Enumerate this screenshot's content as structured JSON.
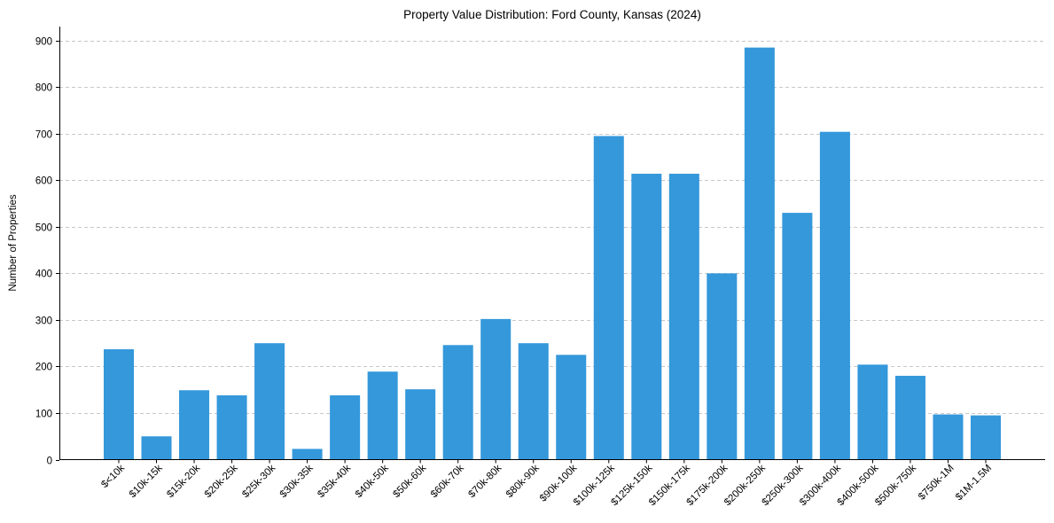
{
  "chart_data": {
    "type": "bar",
    "title": "Property Value Distribution: Ford County, Kansas (2024)",
    "xlabel": "",
    "ylabel": "Number of Properties",
    "ylim": [
      0,
      930
    ],
    "yticks": [
      0,
      100,
      200,
      300,
      400,
      500,
      600,
      700,
      800,
      900
    ],
    "grid": "y-dashed",
    "bar_color": "#3498db",
    "categories": [
      "$<10k",
      "$10k-15k",
      "$15k-20k",
      "$20k-25k",
      "$25k-30k",
      "$30k-35k",
      "$35k-40k",
      "$40k-50k",
      "$50k-60k",
      "$60k-70k",
      "$70k-80k",
      "$80k-90k",
      "$90k-100k",
      "$100k-125k",
      "$125k-150k",
      "$150k-175k",
      "$175k-200k",
      "$200k-250k",
      "$250k-300k",
      "$300k-400k",
      "$400k-500k",
      "$500k-750k",
      "$750k-1M",
      "$1M-1.5M"
    ],
    "values": [
      237,
      50,
      149,
      138,
      250,
      23,
      138,
      189,
      151,
      246,
      302,
      250,
      225,
      695,
      614,
      614,
      400,
      885,
      530,
      704,
      204,
      180,
      97,
      95
    ]
  }
}
